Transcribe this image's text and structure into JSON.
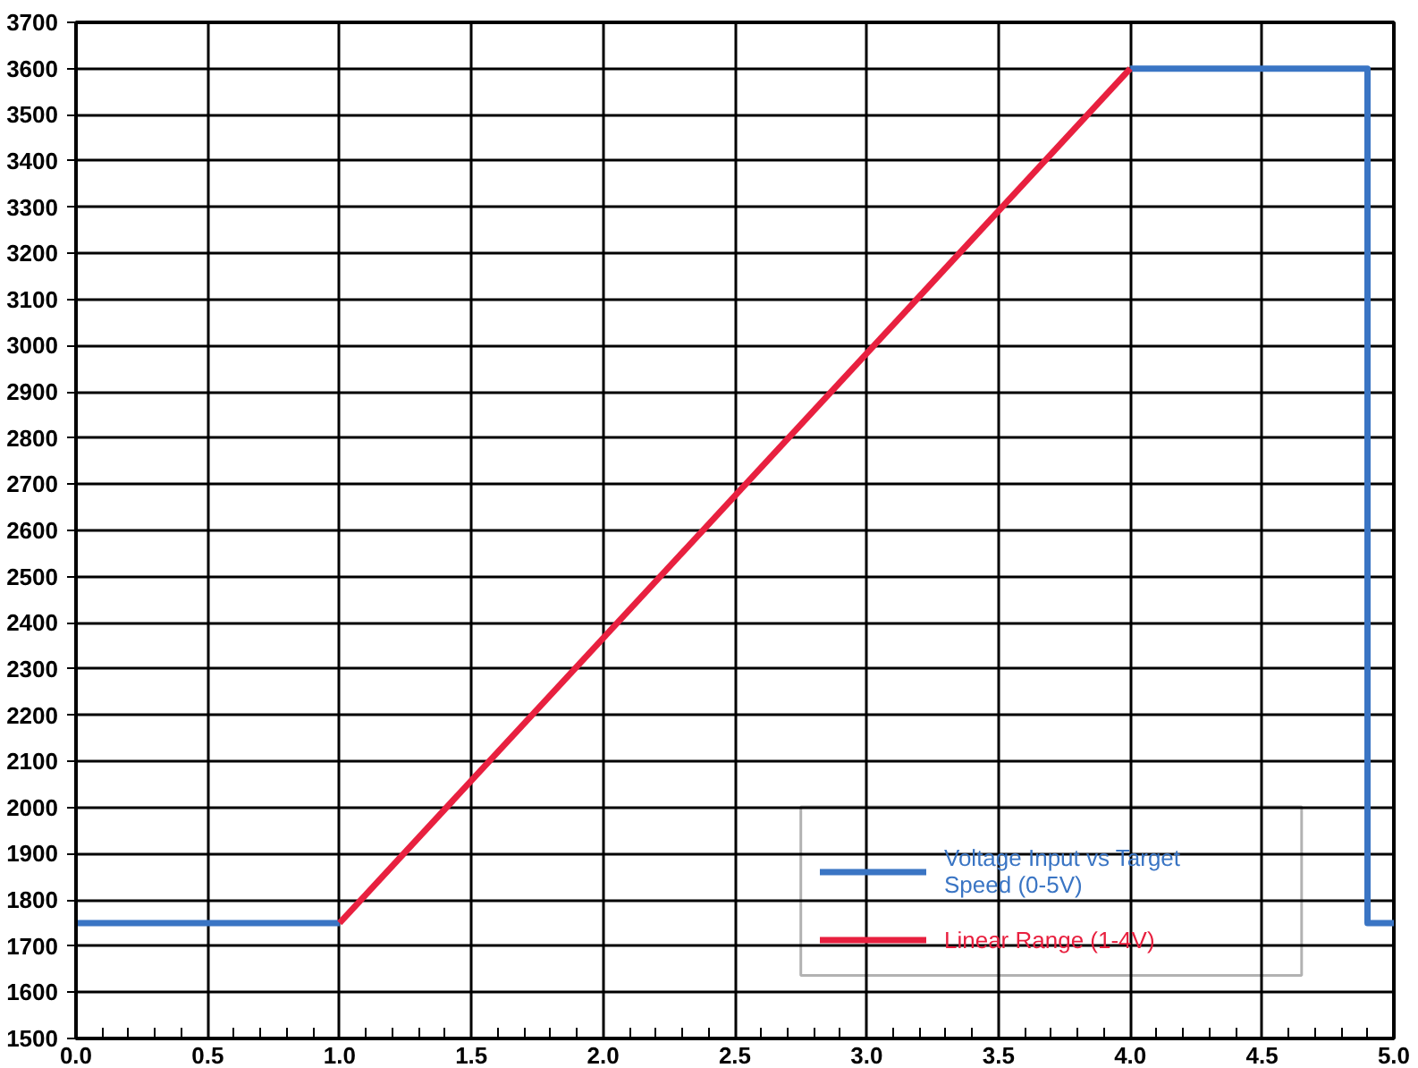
{
  "chart_data": {
    "type": "line",
    "xlim": [
      0,
      5
    ],
    "xticks": [
      {
        "value": 0,
        "label": "0.0"
      },
      {
        "value": 0.5,
        "label": "0.5"
      },
      {
        "value": 1,
        "label": "1.0"
      },
      {
        "value": 1.5,
        "label": "1.5"
      },
      {
        "value": 2,
        "label": "2.0"
      },
      {
        "value": 2.5,
        "label": "2.5"
      },
      {
        "value": 3,
        "label": "3.0"
      },
      {
        "value": 3.5,
        "label": "3.5"
      },
      {
        "value": 4,
        "label": "4.0"
      },
      {
        "value": 4.5,
        "label": "4.5"
      },
      {
        "value": 5,
        "label": "5.0"
      }
    ],
    "ylim": [
      1500,
      3700
    ],
    "yticks": [
      1500,
      1600,
      1700,
      1800,
      1900,
      2000,
      2100,
      2200,
      2300,
      2400,
      2500,
      2600,
      2700,
      2800,
      2900,
      3000,
      3100,
      3200,
      3300,
      3400,
      3500,
      3600,
      3700
    ],
    "series": [
      {
        "name": "Voltage Input vs Target Speed (0-5V)",
        "color": "#3a75c4",
        "x": [
          0,
          1,
          2.5,
          4,
          4.9,
          4.9,
          5
        ],
        "values": [
          1750,
          1750,
          null,
          3600,
          3600,
          1750,
          1750
        ]
      },
      {
        "name": "Linear Range (1-4V)",
        "color": "#e8203f",
        "x": [
          1,
          4
        ],
        "values": [
          1750,
          3600
        ]
      }
    ],
    "grid": true,
    "legend": "bottom right",
    "marker": "none",
    "line_style": "solid"
  }
}
